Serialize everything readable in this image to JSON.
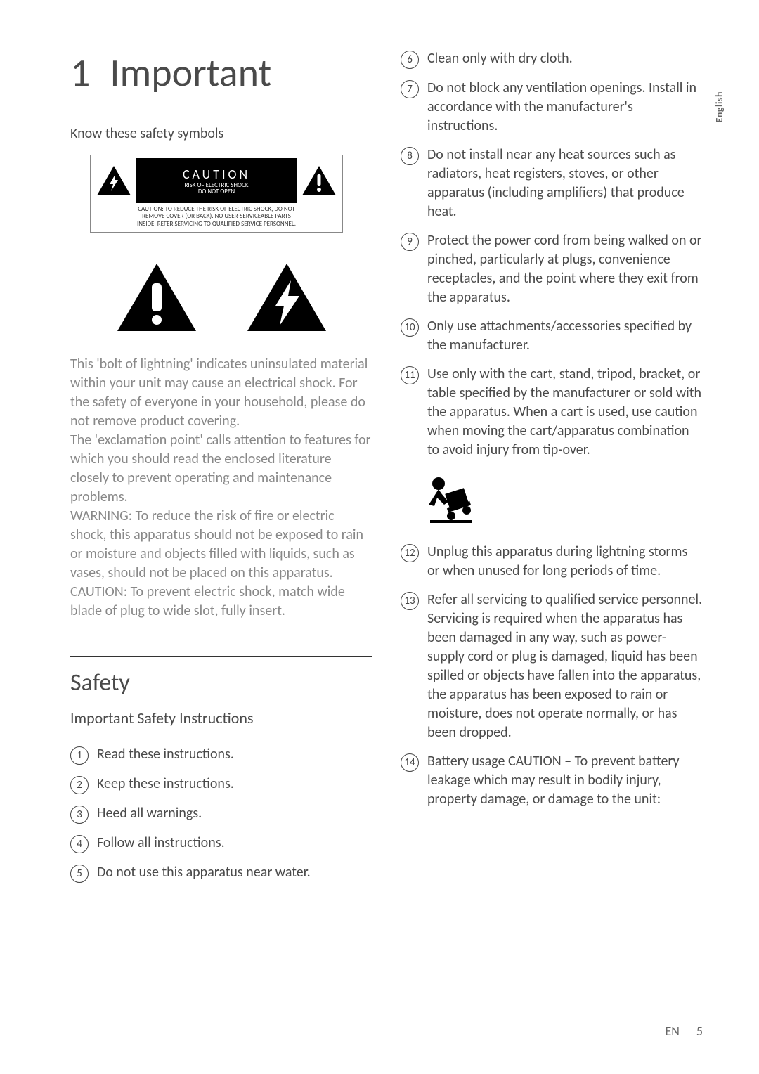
{
  "lang_tab": "English",
  "chapter": {
    "num": "1",
    "title": "Important"
  },
  "know_symbols": "Know these safety symbols",
  "caution_box": {
    "word": "CAUTION",
    "sub1": "RISK OF ELECTRIC SHOCK",
    "sub2": "DO NOT OPEN",
    "line1": "CAUTION: TO REDUCE THE RISK OF ELECTRIC SHOCK, DO NOT",
    "line2": "REMOVE COVER (OR BACK). NO USER-SERVICEABLE PARTS",
    "line3": "INSIDE. REFER SERVICING TO QUALIFIED SERVICE PERSONNEL."
  },
  "body_paragraph": "This 'bolt of lightning' indicates uninsulated material within your unit may cause an electrical shock. For the safety of everyone in your household, please do not remove product covering.\nThe 'exclamation point' calls attention to features for which you should read the enclosed literature closely to prevent operating and maintenance problems.\nWARNING: To reduce the risk of fire or electric shock, this apparatus should not be exposed to rain or moisture and objects filled with liquids, such as vases, should not be placed on this apparatus.\nCAUTION: To prevent electric shock, match wide blade of plug to wide slot, fully insert.",
  "safety_heading": "Safety",
  "isi_heading": "Important Safety Instructions",
  "left_items": [
    {
      "n": "1",
      "t": "Read these instructions."
    },
    {
      "n": "2",
      "t": "Keep these instructions."
    },
    {
      "n": "3",
      "t": "Heed all warnings."
    },
    {
      "n": "4",
      "t": "Follow all instructions."
    },
    {
      "n": "5",
      "t": "Do not use this apparatus near water."
    }
  ],
  "right_items_a": [
    {
      "n": "6",
      "t": "Clean only with dry cloth."
    },
    {
      "n": "7",
      "t": "Do not block any ventilation openings. Install in accordance with the manufacturer's instructions."
    },
    {
      "n": "8",
      "t": "Do not install near any heat sources such as radiators, heat registers, stoves, or other apparatus (including amplifiers) that produce heat."
    },
    {
      "n": "9",
      "t": "Protect the power cord from being walked on or pinched, particularly at plugs, convenience receptacles, and the point where they exit from the apparatus."
    },
    {
      "n": "10",
      "t": "Only use attachments/accessories specified by the manufacturer."
    },
    {
      "n": "11",
      "t": "Use only with the cart, stand, tripod, bracket, or table specified by the manufacturer or sold with the apparatus. When a cart is used, use caution when moving the cart/apparatus combination to avoid injury from tip-over."
    }
  ],
  "right_items_b": [
    {
      "n": "12",
      "t": "Unplug this apparatus during lightning storms or when unused for long periods of time."
    },
    {
      "n": "13",
      "t": "Refer all servicing to qualified service personnel. Servicing is required when the apparatus has been damaged in any way, such as power-supply cord or plug is damaged, liquid has been spilled or objects have fallen into the apparatus, the apparatus has been exposed to rain or moisture, does not operate normally, or has been dropped."
    },
    {
      "n": "14",
      "t": "Battery usage CAUTION – To prevent battery leakage which may result in bodily injury, property damage, or damage to the unit:"
    }
  ],
  "footer": {
    "lang": "EN",
    "page": "5"
  }
}
